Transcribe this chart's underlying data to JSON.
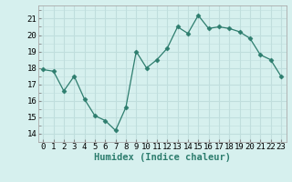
{
  "x": [
    0,
    1,
    2,
    3,
    4,
    5,
    6,
    7,
    8,
    9,
    10,
    11,
    12,
    13,
    14,
    15,
    16,
    17,
    18,
    19,
    20,
    21,
    22,
    23
  ],
  "y": [
    17.9,
    17.8,
    16.6,
    17.5,
    16.1,
    15.1,
    14.8,
    14.2,
    15.6,
    19.0,
    18.0,
    18.5,
    19.2,
    20.5,
    20.1,
    21.2,
    20.4,
    20.5,
    20.4,
    20.2,
    19.8,
    18.8,
    18.5,
    17.5
  ],
  "xlabel": "Humidex (Indice chaleur)",
  "ylim": [
    13.5,
    21.8
  ],
  "xlim": [
    -0.5,
    23.5
  ],
  "yticks": [
    14,
    15,
    16,
    17,
    18,
    19,
    20,
    21
  ],
  "xticks": [
    0,
    1,
    2,
    3,
    4,
    5,
    6,
    7,
    8,
    9,
    10,
    11,
    12,
    13,
    14,
    15,
    16,
    17,
    18,
    19,
    20,
    21,
    22,
    23
  ],
  "line_color": "#2d7d6e",
  "marker": "D",
  "marker_size": 2.5,
  "bg_color": "#d6f0ee",
  "grid_major_color": "#c0dedd",
  "grid_minor_color": "#c0dedd",
  "tick_label_fontsize": 6.5,
  "xlabel_fontsize": 7.5
}
